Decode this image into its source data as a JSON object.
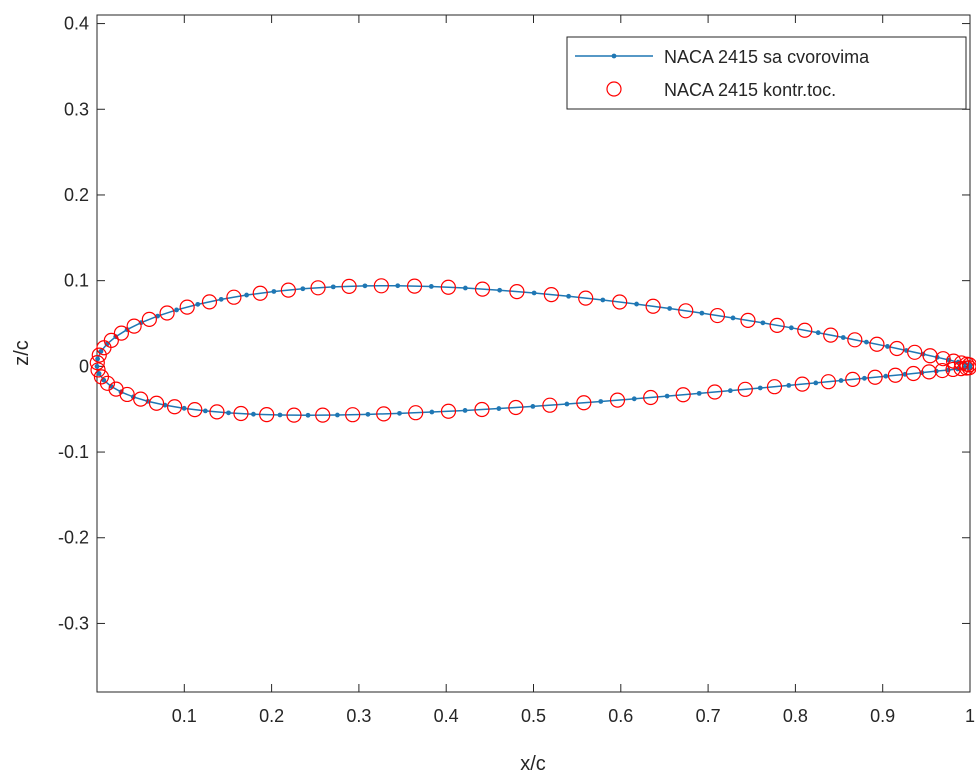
{
  "chart_data": {
    "type": "line",
    "title": "",
    "xlabel": "x/c",
    "ylabel": "z/c",
    "xlim": [
      0,
      1
    ],
    "ylim": [
      -0.38,
      0.41
    ],
    "xticks": [
      0.1,
      0.2,
      0.3,
      0.4,
      0.5,
      0.6,
      0.7,
      0.8,
      0.9,
      1
    ],
    "xtick_labels": [
      "0.1",
      "0.2",
      "0.3",
      "0.4",
      "0.5",
      "0.6",
      "0.7",
      "0.8",
      "0.9",
      "1"
    ],
    "yticks": [
      -0.3,
      -0.2,
      -0.1,
      0,
      0.1,
      0.2,
      0.3,
      0.4
    ],
    "ytick_labels": [
      "-0.3",
      "-0.2",
      "-0.1",
      "0",
      "0.1",
      "0.2",
      "0.3",
      "0.4"
    ],
    "grid": false,
    "legend_position": "top-right",
    "airfoil": {
      "m": 0.02,
      "p": 0.4,
      "t": 0.15,
      "panels_per_surface": 40
    },
    "series": [
      {
        "name": "NACA 2415 sa cvorovima",
        "kind": "line-with-dot-markers",
        "color": "#1f77b4"
      },
      {
        "name": "NACA 2415 kontr.toc.",
        "kind": "open-circle-markers",
        "color": "#ff0000"
      }
    ]
  }
}
